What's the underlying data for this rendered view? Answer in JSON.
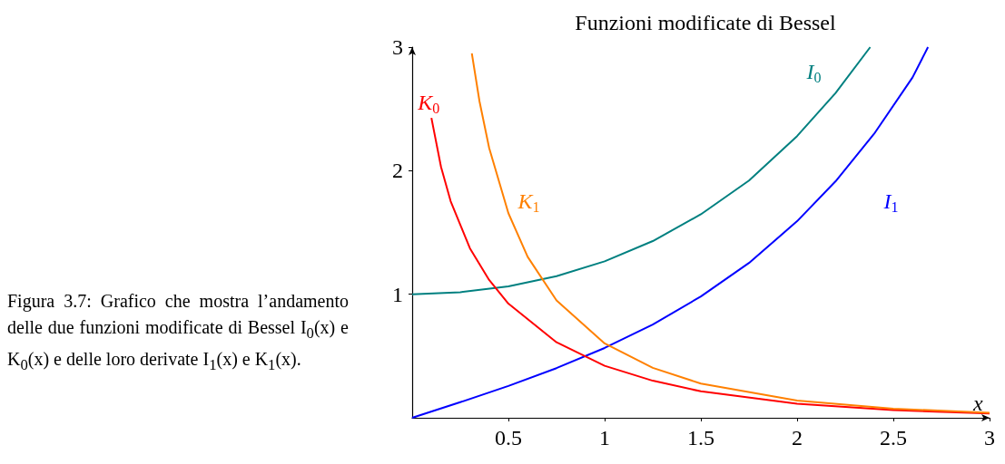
{
  "chart_data": {
    "type": "line",
    "title": "Funzioni modificate di Bessel",
    "xlabel": "x",
    "xlim": [
      0,
      3
    ],
    "ylim": [
      0,
      3
    ],
    "xticks": [
      0.5,
      1,
      1.5,
      2,
      2.5,
      3
    ],
    "yticks": [
      1,
      2,
      3
    ],
    "grid": false,
    "legend": false,
    "marker": "none",
    "line_style": "solid",
    "annotations": [
      "Figura 3.7: Grafico che mostra l’andamento delle due funzioni modificate di Bessel I$_{0}$(x) e K$_{0}$(x) e delle loro derivate I$_{1}$(x) e K$_{1}$(x)."
    ],
    "series": [
      {
        "name": "I$_{0}$",
        "color": "#008080",
        "x": [
          0,
          0.25,
          0.5,
          0.75,
          1,
          1.25,
          1.5,
          1.75,
          2,
          2.2,
          2.38
        ],
        "values": [
          1,
          1.016,
          1.064,
          1.146,
          1.266,
          1.43,
          1.647,
          1.92,
          2.28,
          2.629,
          3.0
        ]
      },
      {
        "name": "I$_{1}$",
        "color": "#0000ff",
        "x": [
          0,
          0.25,
          0.5,
          0.75,
          1,
          1.25,
          1.5,
          1.75,
          2,
          2.2,
          2.4,
          2.6,
          2.68
        ],
        "values": [
          0,
          0.126,
          0.258,
          0.402,
          0.565,
          0.755,
          0.982,
          1.253,
          1.591,
          1.914,
          2.298,
          2.755,
          3.0
        ]
      },
      {
        "name": "K$_{0}$",
        "color": "#ff0000",
        "x": [
          0.1,
          0.15,
          0.2,
          0.3,
          0.4,
          0.5,
          0.75,
          1,
          1.25,
          1.5,
          2,
          2.5,
          3
        ],
        "values": [
          2.427,
          2.03,
          1.753,
          1.372,
          1.115,
          0.924,
          0.611,
          0.421,
          0.3,
          0.214,
          0.114,
          0.062,
          0.035
        ]
      },
      {
        "name": "K$_{1}$",
        "color": "#ff8000",
        "x": [
          0.31,
          0.35,
          0.4,
          0.5,
          0.6,
          0.75,
          1,
          1.25,
          1.5,
          2,
          2.5,
          3
        ],
        "values": [
          2.95,
          2.56,
          2.184,
          1.656,
          1.303,
          0.95,
          0.602,
          0.404,
          0.277,
          0.14,
          0.074,
          0.04
        ]
      }
    ]
  }
}
